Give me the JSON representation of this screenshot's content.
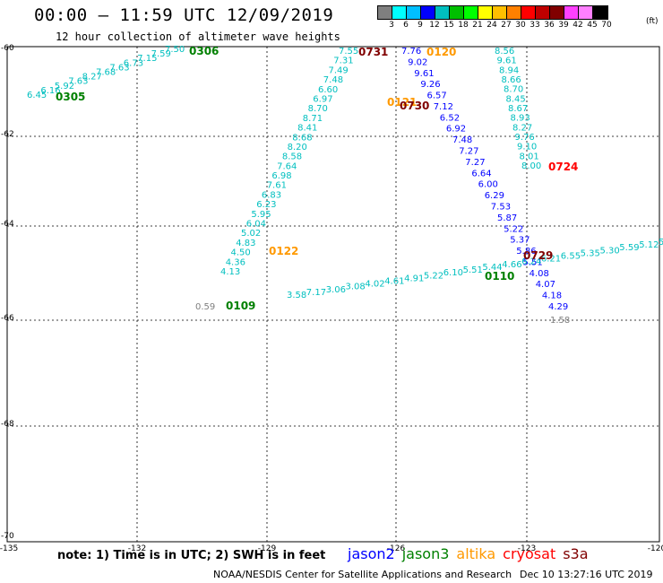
{
  "header": {
    "title": "00:00 — 11:59 UTC 12/09/2019",
    "subtitle": "12 hour collection of altimeter wave heights"
  },
  "legend": {
    "thresholds": [
      "3",
      "6",
      "9",
      "12",
      "15",
      "18",
      "21",
      "24",
      "27",
      "30",
      "33",
      "36",
      "39",
      "42",
      "45",
      "70"
    ],
    "colors": [
      "#7f7f7f",
      "#00ffff",
      "#00bfff",
      "#0000ff",
      "#00bfbf",
      "#00bf00",
      "#00ff00",
      "#ffff00",
      "#ffbf00",
      "#ff8000",
      "#ff0000",
      "#bf0000",
      "#800000",
      "#ff40ff",
      "#ff80ff",
      "#000000"
    ],
    "unit": "(ft)"
  },
  "axes": {
    "lat_labels": [
      "-60",
      "-62",
      "-64",
      "-66",
      "-68",
      "-70"
    ],
    "lon_labels": [
      "-135",
      "-132",
      "-129",
      "-126",
      "-123",
      "-120"
    ]
  },
  "tracks": [
    {
      "name": "0305",
      "color": "#00bfbf",
      "points": [
        "6.45",
        "6.16",
        "5.92",
        "7.63",
        "8.27",
        "7.68",
        "7.63",
        "6.73",
        "7.15",
        "7.59",
        "7.50"
      ]
    },
    {
      "name": "0731",
      "color": "#00bfbf",
      "points": [
        "7.55",
        "7.31",
        "7.49",
        "7.48",
        "6.60",
        "6.97",
        "8.70",
        "8.71",
        "8.41",
        "8.68",
        "8.20",
        "8.58",
        "7.64",
        "6.98",
        "7.61",
        "6.83",
        "6.23",
        "5.95",
        "6.04",
        "5.02",
        "4.83",
        "4.50",
        "4.36",
        "4.13"
      ]
    },
    {
      "name": "0730",
      "color": "#0000ff",
      "points": [
        "7.76",
        "9.02",
        "9.61",
        "9.26",
        "6.57",
        "7.12",
        "6.52",
        "6.92",
        "7.48",
        "7.27",
        "7.27",
        "6.64",
        "6.00",
        "6.29",
        "7.53",
        "5.87",
        "5.22",
        "5.37",
        "5.86",
        "5.51",
        "4.08",
        "4.07",
        "4.18",
        "4.29"
      ]
    },
    {
      "name": "0724",
      "color": "#00bfbf",
      "points": [
        "8.56",
        "9.61",
        "8.94",
        "8.66",
        "8.70",
        "8.45",
        "8.67",
        "8.93",
        "8.27",
        "9.76",
        "9.10",
        "8.01",
        "8.00"
      ]
    },
    {
      "name": "0110",
      "color": "#00bfbf",
      "points": [
        "3.58",
        "7.17",
        "3.06",
        "3.08",
        "4.02",
        "4.61",
        "4.91",
        "5.22",
        "6.10",
        "5.51",
        "5.44",
        "4.66",
        "6.24",
        "6.21",
        "6.55",
        "5.35",
        "5.30",
        "5.59",
        "5.12",
        "5"
      ]
    }
  ],
  "pass_labels": [
    {
      "text": "0306",
      "color": "#008000"
    },
    {
      "text": "0305",
      "color": "#008000"
    },
    {
      "text": "0731",
      "color": "#800000"
    },
    {
      "text": "0120",
      "color": "#ff9900"
    },
    {
      "text": "0121",
      "color": "#ff9900"
    },
    {
      "text": "0730",
      "color": "#800000"
    },
    {
      "text": "0724",
      "color": "#ff0000"
    },
    {
      "text": "0122",
      "color": "#ff9900"
    },
    {
      "text": "0729",
      "color": "#800000"
    },
    {
      "text": "0110",
      "color": "#008000"
    },
    {
      "text": "0109",
      "color": "#008000"
    }
  ],
  "extra_values": {
    "v1": "0.59",
    "v2": "1.58",
    "v3": "4.13"
  },
  "footer": {
    "note": "note: 1) Time is in UTC; 2) SWH is in feet",
    "satellites": [
      {
        "name": "jason2",
        "color": "#0000ff"
      },
      {
        "name": "jason3",
        "color": "#008000"
      },
      {
        "name": "altika",
        "color": "#ff9900"
      },
      {
        "name": "cryosat",
        "color": "#ff0000"
      },
      {
        "name": "s3a",
        "color": "#800000"
      }
    ],
    "credit": "NOAA/NESDIS Center for Satellite Applications and Research",
    "timestamp": "Dec 10 13:27:16 UTC 2019"
  }
}
